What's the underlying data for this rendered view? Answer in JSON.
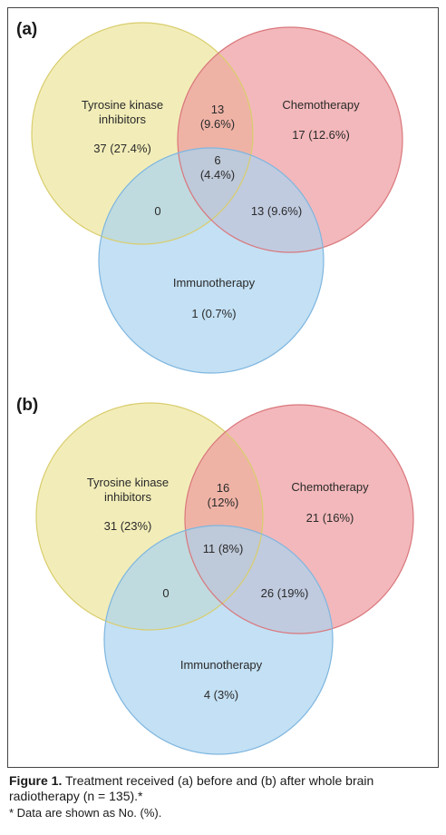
{
  "colors": {
    "tki_fill": "#ede59a",
    "tki_stroke": "#d9cd6e",
    "chemo_fill": "#ee9a9e",
    "chemo_stroke": "#d9777c",
    "immuno_fill": "#a9d3ef",
    "immuno_stroke": "#7fb6df"
  },
  "panels": [
    {
      "label": "(a)",
      "tki_label_line1": "Tyrosine kinase",
      "tki_label_line2": "inhibitors",
      "chemo_label": "Chemotherapy",
      "immuno_label": "Immunotherapy",
      "tki_only": "37 (27.4%)",
      "chemo_only": "17 (12.6%)",
      "immuno_only": "1 (0.7%)",
      "tki_chemo_line1": "13",
      "tki_chemo_line2": "(9.6%)",
      "all_line1": "6",
      "all_line2": "(4.4%)",
      "tki_immuno": "0",
      "chemo_immuno": "13 (9.6%)"
    },
    {
      "label": "(b)",
      "tki_label_line1": "Tyrosine kinase",
      "tki_label_line2": "inhibitors",
      "chemo_label": "Chemotherapy",
      "immuno_label": "Immunotherapy",
      "tki_only": "31 (23%)",
      "chemo_only": "21 (16%)",
      "immuno_only": "4 (3%)",
      "tki_chemo_line1": "16",
      "tki_chemo_line2": "(12%)",
      "all_line1": "11 (8%)",
      "all_line2": "",
      "tki_immuno": "0",
      "chemo_immuno": "26 (19%)"
    }
  ],
  "caption": {
    "figure_label": "Figure 1.",
    "text": " Treatment received (a) before and (b) after whole brain radiotherapy (n = 135).*",
    "note": "* Data are shown as No. (%)."
  }
}
